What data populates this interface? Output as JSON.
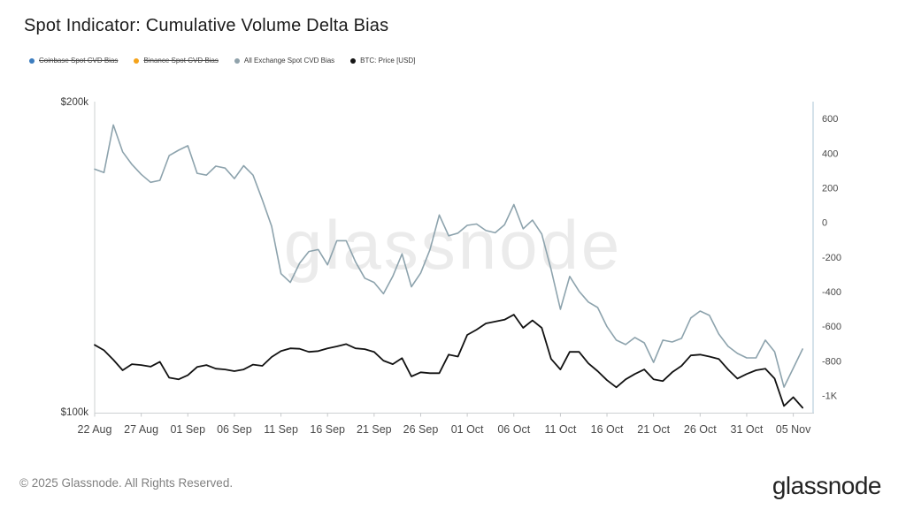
{
  "header": {
    "title": "Spot Indicator: Cumulative Volume Delta Bias"
  },
  "legend": {
    "items": [
      {
        "label": "Coinbase Spot CVD Bias",
        "color": "#3c7dbf",
        "disabled": true
      },
      {
        "label": "Binance Spot CVD Bias",
        "color": "#f5a31a",
        "disabled": true
      },
      {
        "label": "All Exchange Spot CVD Bias",
        "color": "#90a2ab",
        "disabled": false
      },
      {
        "label": "BTC: Price [USD]",
        "color": "#141414",
        "disabled": false
      }
    ]
  },
  "watermark": "glassnode",
  "footer": {
    "copyright": "© 2025 Glassnode. All Rights Reserved.",
    "logo": "glassnode"
  },
  "chart_data": {
    "type": "line",
    "title": "Spot Indicator: Cumulative Volume Delta Bias",
    "grid": false,
    "legend_position": "top-left",
    "x_tick_labels": [
      "22 Aug",
      "27 Aug",
      "01 Sep",
      "06 Sep",
      "11 Sep",
      "16 Sep",
      "21 Sep",
      "26 Sep",
      "01 Oct",
      "06 Oct",
      "11 Oct",
      "16 Oct",
      "21 Oct",
      "26 Oct",
      "31 Oct",
      "05 Nov"
    ],
    "left_axis": {
      "scale": "log",
      "unit": "USD",
      "label_top": "$200k",
      "label_bottom": "$100k",
      "range": [
        100000,
        200000
      ]
    },
    "right_axis": {
      "ticks": [
        "600",
        "400",
        "200",
        "0",
        "-200",
        "-400",
        "-600",
        "-800",
        "-1K"
      ],
      "tick_values": [
        600,
        400,
        200,
        0,
        -200,
        -400,
        -600,
        -800,
        -1000
      ],
      "range": [
        -1100,
        700
      ]
    },
    "dates": [
      "22 Aug",
      "23 Aug",
      "24 Aug",
      "25 Aug",
      "26 Aug",
      "27 Aug",
      "28 Aug",
      "29 Aug",
      "30 Aug",
      "31 Aug",
      "01 Sep",
      "02 Sep",
      "03 Sep",
      "04 Sep",
      "05 Sep",
      "06 Sep",
      "07 Sep",
      "08 Sep",
      "09 Sep",
      "10 Sep",
      "11 Sep",
      "12 Sep",
      "13 Sep",
      "14 Sep",
      "15 Sep",
      "16 Sep",
      "17 Sep",
      "18 Sep",
      "19 Sep",
      "20 Sep",
      "21 Sep",
      "22 Sep",
      "23 Sep",
      "24 Sep",
      "25 Sep",
      "26 Sep",
      "27 Sep",
      "28 Sep",
      "29 Sep",
      "30 Sep",
      "01 Oct",
      "02 Oct",
      "03 Oct",
      "04 Oct",
      "05 Oct",
      "06 Oct",
      "07 Oct",
      "08 Oct",
      "09 Oct",
      "10 Oct",
      "11 Oct",
      "12 Oct",
      "13 Oct",
      "14 Oct",
      "15 Oct",
      "16 Oct",
      "17 Oct",
      "18 Oct",
      "19 Oct",
      "20 Oct",
      "21 Oct",
      "22 Oct",
      "23 Oct",
      "24 Oct",
      "25 Oct",
      "26 Oct",
      "27 Oct",
      "28 Oct",
      "29 Oct",
      "30 Oct",
      "31 Oct",
      "01 Nov",
      "02 Nov",
      "03 Nov",
      "04 Nov",
      "05 Nov",
      "06 Nov"
    ],
    "series": [
      {
        "id": "coinbase_cvd",
        "name": "Coinbase Spot CVD Bias",
        "color": "#3c7dbf",
        "axis": "right",
        "visible": false,
        "values": null
      },
      {
        "id": "binance_cvd",
        "name": "Binance Spot CVD Bias",
        "color": "#f5a31a",
        "axis": "right",
        "visible": false,
        "values": null
      },
      {
        "id": "all_exchange_cvd",
        "name": "All Exchange Spot CVD Bias",
        "color": "#8da3ad",
        "axis": "right",
        "visible": true,
        "values": [
          310,
          290,
          565,
          410,
          337,
          280,
          234,
          245,
          388,
          419,
          445,
          286,
          275,
          327,
          316,
          255,
          330,
          275,
          132,
          -20,
          -294,
          -345,
          -234,
          -166,
          -155,
          -243,
          -104,
          -104,
          -226,
          -320,
          -345,
          -410,
          -310,
          -180,
          -370,
          -290,
          -155,
          45,
          -75,
          -60,
          -15,
          -7,
          -45,
          -58,
          -12,
          105,
          -35,
          15,
          -65,
          -270,
          -500,
          -310,
          -396,
          -458,
          -490,
          -600,
          -678,
          -704,
          -663,
          -694,
          -807,
          -678,
          -689,
          -668,
          -550,
          -510,
          -535,
          -643,
          -714,
          -755,
          -781,
          -781,
          -678,
          -745,
          -950,
          -840,
          -730
        ]
      },
      {
        "id": "btc_price",
        "name": "BTC: Price [USD]",
        "color": "#121212",
        "axis": "left",
        "visible": true,
        "unit": "k USD",
        "values": [
          116.4,
          115.0,
          112.6,
          110.0,
          111.5,
          111.3,
          110.9,
          112.1,
          108.2,
          107.8,
          108.8,
          110.8,
          111.3,
          110.4,
          110.2,
          109.8,
          110.2,
          111.4,
          111.1,
          113.3,
          114.8,
          115.5,
          115.4,
          114.6,
          114.8,
          115.5,
          116.0,
          116.6,
          115.5,
          115.3,
          114.6,
          112.4,
          111.5,
          113.0,
          108.5,
          109.5,
          109.3,
          109.3,
          113.9,
          113.4,
          119.0,
          120.4,
          122.1,
          122.6,
          123.1,
          124.5,
          120.9,
          122.9,
          120.9,
          112.8,
          110.2,
          114.6,
          114.6,
          111.7,
          109.8,
          107.6,
          105.9,
          107.8,
          109.1,
          110.2,
          107.8,
          107.4,
          109.5,
          111.1,
          113.7,
          113.9,
          113.4,
          112.8,
          110.2,
          108.0,
          109.1,
          110.0,
          110.4,
          108.0,
          101.6,
          103.6,
          101.2
        ]
      }
    ]
  }
}
